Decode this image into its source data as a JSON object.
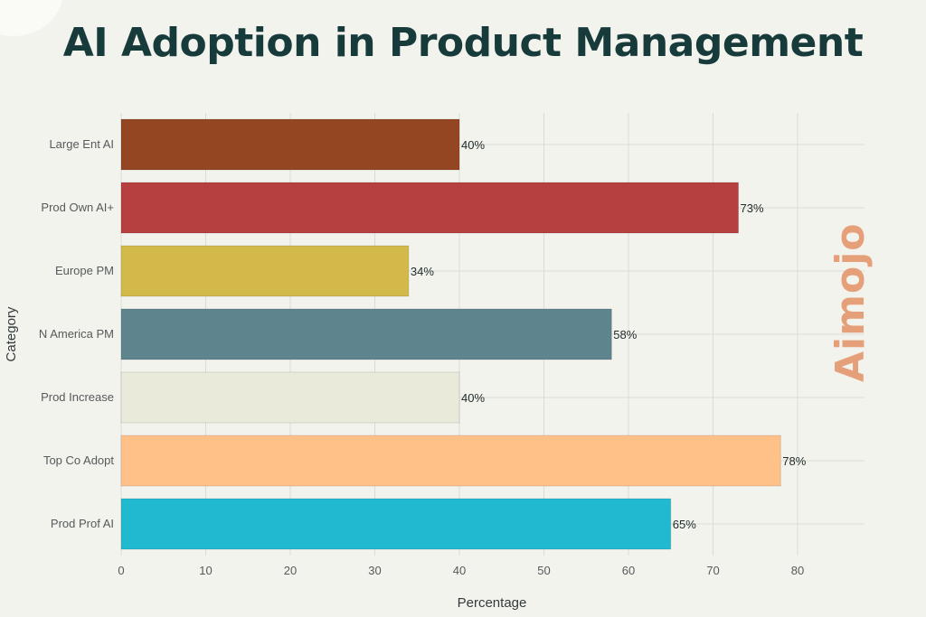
{
  "chart_data": {
    "type": "bar",
    "orientation": "horizontal",
    "title": "AI Adoption in Product Management",
    "xlabel": "Percentage",
    "ylabel": "Category",
    "xlim": [
      0,
      88
    ],
    "xticks": [
      0,
      10,
      20,
      30,
      40,
      50,
      60,
      70,
      80
    ],
    "grid": true,
    "categories": [
      "Large Ent AI",
      "Prod Own AI+",
      "Europe PM",
      "N America PM",
      "Prod Increase",
      "Top Co Adopt",
      "Prod Prof AI"
    ],
    "values": [
      40,
      73,
      34,
      58,
      40,
      78,
      65
    ],
    "labels": [
      "40%",
      "73%",
      "34%",
      "58%",
      "40%",
      "78%",
      "65%"
    ],
    "colors": [
      "#944522",
      "#b63f40",
      "#d3b84a",
      "#5e848e",
      "#eaeadb",
      "#ffc188",
      "#21b9cf"
    ]
  },
  "watermark": {
    "text": "Aimojo",
    "color": "#e5a07a"
  }
}
